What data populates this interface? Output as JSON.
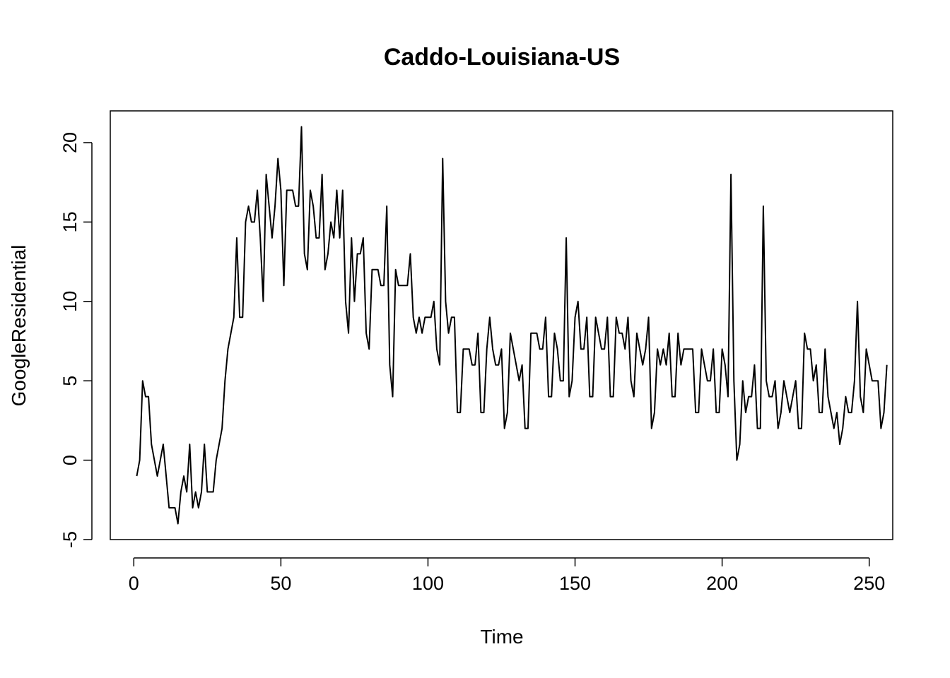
{
  "chart_data": {
    "type": "line",
    "title": "Caddo-Louisiana-US",
    "xlabel": "Time",
    "ylabel": "GoogleResidential",
    "xlim": [
      -8,
      258
    ],
    "ylim": [
      -5,
      22
    ],
    "xticks": [
      0,
      50,
      100,
      150,
      200,
      250
    ],
    "yticks": [
      -5,
      0,
      5,
      10,
      15,
      20
    ],
    "xtick_labels": [
      "0",
      "50",
      "100",
      "150",
      "200",
      "250"
    ],
    "ytick_labels": [
      "-5",
      "0",
      "5",
      "10",
      "15",
      "20"
    ],
    "grid": false,
    "series": [
      {
        "color": "#000000",
        "x_start": 1,
        "values": [
          -1,
          0,
          5,
          4,
          4,
          1,
          0,
          -1,
          0,
          1,
          -1,
          -3,
          -3,
          -3,
          -4,
          -2,
          -1,
          -2,
          1,
          -3,
          -2,
          -3,
          -2,
          1,
          -2,
          -2,
          -2,
          0,
          1,
          2,
          5,
          7,
          8,
          9,
          14,
          9,
          9,
          15,
          16,
          15,
          15,
          17,
          14,
          10,
          18,
          16,
          14,
          16,
          19,
          17,
          11,
          17,
          17,
          17,
          16,
          16,
          21,
          13,
          12,
          17,
          16,
          14,
          14,
          18,
          12,
          13,
          15,
          14,
          17,
          14,
          17,
          10,
          8,
          14,
          10,
          13,
          13,
          14,
          8,
          7,
          12,
          12,
          12,
          11,
          11,
          16,
          6,
          4,
          12,
          11,
          11,
          11,
          11,
          13,
          9,
          8,
          9,
          8,
          9,
          9,
          9,
          10,
          7,
          6,
          19,
          10,
          8,
          9,
          9,
          3,
          3,
          7,
          7,
          7,
          6,
          6,
          8,
          3,
          3,
          7,
          9,
          7,
          6,
          6,
          7,
          2,
          3,
          8,
          7,
          6,
          5,
          6,
          2,
          2,
          8,
          8,
          8,
          7,
          7,
          9,
          4,
          4,
          8,
          7,
          5,
          5,
          14,
          4,
          5,
          9,
          10,
          7,
          7,
          9,
          4,
          4,
          9,
          8,
          7,
          7,
          9,
          4,
          4,
          9,
          8,
          8,
          7,
          9,
          5,
          4,
          8,
          7,
          6,
          7,
          9,
          2,
          3,
          7,
          6,
          7,
          6,
          8,
          4,
          4,
          8,
          6,
          7,
          7,
          7,
          7,
          3,
          3,
          7,
          6,
          5,
          5,
          7,
          3,
          3,
          7,
          6,
          4,
          18,
          5,
          0,
          1,
          5,
          3,
          4,
          4,
          6,
          2,
          2,
          16,
          5,
          4,
          4,
          5,
          2,
          3,
          5,
          4,
          3,
          4,
          5,
          2,
          2,
          8,
          7,
          7,
          5,
          6,
          3,
          3,
          7,
          4,
          3,
          2,
          3,
          1,
          2,
          4,
          3,
          3,
          5,
          10,
          4,
          3,
          7,
          6,
          5,
          5,
          5,
          2,
          3,
          6
        ]
      }
    ]
  }
}
